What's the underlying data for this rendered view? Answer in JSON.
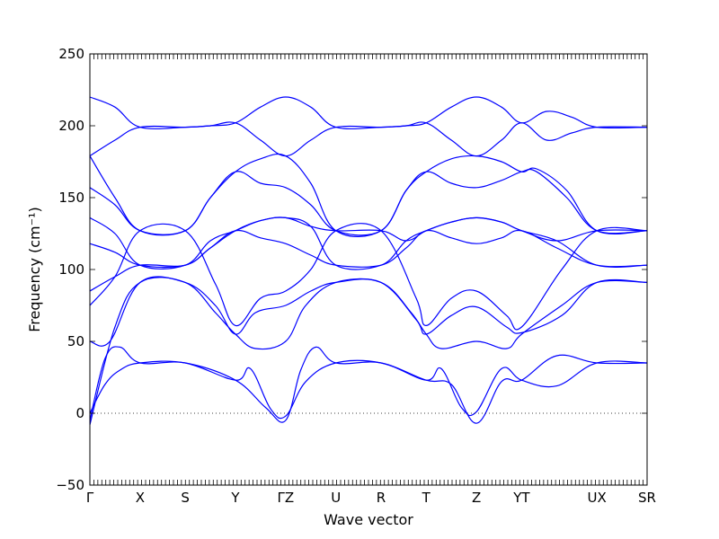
{
  "chart_data": {
    "type": "line",
    "xlabel": "Wave vector",
    "ylabel": "Frequency (cm⁻¹)",
    "ylim": [
      -50,
      250
    ],
    "yticks": [
      -50,
      0,
      50,
      100,
      150,
      200,
      250
    ],
    "grid": false,
    "legend": "none",
    "line_color": "#0000ff",
    "x_points": [
      {
        "label": "Γ",
        "x": 0
      },
      {
        "label": "X",
        "x": 1
      },
      {
        "label": "S",
        "x": 1.9
      },
      {
        "label": "Y",
        "x": 2.9
      },
      {
        "label": "ΓZ",
        "x": 3.9
      },
      {
        "label": "U",
        "x": 4.9
      },
      {
        "label": "R",
        "x": 5.8
      },
      {
        "label": "T",
        "x": 6.7
      },
      {
        "label": "Z",
        "x": 7.7
      },
      {
        "label": "YT",
        "x": 8.6
      },
      {
        "label": "UX",
        "x": 10.1
      },
      {
        "label": "SR",
        "x": 11.1
      }
    ],
    "series": [
      {
        "x": [
          0,
          0.3,
          0.6,
          1,
          1.9,
          2.9,
          3.5,
          3.9,
          4.2,
          4.5,
          4.9,
          5.8,
          6.7,
          7.2,
          7.7,
          8.2,
          8.6,
          9.3,
          10.1,
          11.1
        ],
        "y": [
          -5,
          38,
          46,
          35,
          35,
          23,
          4,
          -5,
          30,
          46,
          35,
          35,
          23,
          20,
          -7,
          22,
          23,
          40,
          35,
          35
        ]
      },
      {
        "x": [
          0,
          0.3,
          0.6,
          1,
          1.9,
          2.9,
          3.2,
          3.6,
          3.9,
          4.3,
          4.9,
          5.8,
          6.7,
          7.0,
          7.4,
          7.7,
          8.2,
          8.6,
          9.3,
          10.1,
          11.1
        ],
        "y": [
          0,
          20,
          30,
          35,
          35,
          23,
          31,
          3,
          -2,
          22,
          35,
          35,
          23,
          31,
          4,
          1,
          31,
          23,
          19,
          35,
          35
        ]
      },
      {
        "x": [
          0,
          0.5,
          1,
          1.9,
          2.5,
          2.9,
          3.3,
          3.9,
          4.3,
          4.9,
          5.8,
          6.4,
          6.7,
          7.0,
          7.7,
          8.3,
          8.6,
          9.4,
          10.1,
          11.1
        ],
        "y": [
          -8,
          60,
          91,
          91,
          70,
          55,
          45,
          50,
          75,
          91,
          91,
          70,
          55,
          45,
          50,
          45,
          55,
          75,
          91,
          91
        ]
      },
      {
        "x": [
          0,
          0.4,
          1,
          1.9,
          2.5,
          2.9,
          3.3,
          3.9,
          4.4,
          4.9,
          5.8,
          6.5,
          6.7,
          7.2,
          7.7,
          8.3,
          8.6,
          9.4,
          10.1,
          11.1
        ],
        "y": [
          50,
          50,
          91,
          91,
          75,
          55,
          70,
          75,
          85,
          91,
          91,
          65,
          55,
          68,
          74,
          60,
          56,
          68,
          91,
          91
        ]
      },
      {
        "x": [
          0,
          0.5,
          1,
          1.9,
          2.5,
          2.9,
          3.4,
          3.9,
          4.4,
          4.9,
          5.8,
          6.5,
          6.7,
          7.2,
          7.7,
          8.3,
          8.6,
          9.4,
          10.1,
          11.1
        ],
        "y": [
          75,
          95,
          127,
          127,
          90,
          61,
          80,
          85,
          100,
          127,
          127,
          80,
          61,
          80,
          85,
          68,
          60,
          100,
          127,
          127
        ]
      },
      {
        "x": [
          0,
          0.5,
          1,
          1.9,
          2.4,
          2.9,
          3.4,
          3.9,
          4.4,
          4.9,
          5.8,
          6.3,
          6.7,
          7.2,
          7.7,
          8.2,
          8.6,
          9.3,
          10.1,
          11.1
        ],
        "y": [
          85,
          95,
          103,
          103,
          115,
          127,
          122,
          118,
          110,
          103,
          103,
          115,
          127,
          122,
          118,
          122,
          127,
          115,
          103,
          103
        ]
      },
      {
        "x": [
          0,
          0.5,
          1,
          1.9,
          2.4,
          2.9,
          3.4,
          3.9,
          4.4,
          4.9,
          5.8,
          6.3,
          6.7,
          7.2,
          7.7,
          8.2,
          8.6,
          9.3,
          10.1,
          11.1
        ],
        "y": [
          118,
          112,
          103,
          103,
          115,
          127,
          134,
          136,
          130,
          127,
          127,
          120,
          127,
          133,
          136,
          133,
          127,
          120,
          127,
          127
        ]
      },
      {
        "x": [
          0,
          0.5,
          1,
          1.9,
          2.4,
          2.9,
          3.4,
          3.9,
          4.4,
          4.9,
          5.8,
          6.3,
          6.7,
          7.2,
          7.7,
          8.2,
          8.6,
          9.3,
          10.1,
          11.1
        ],
        "y": [
          136,
          125,
          103,
          103,
          120,
          127,
          134,
          136,
          130,
          103,
          103,
          120,
          127,
          133,
          136,
          133,
          127,
          120,
          103,
          103
        ]
      },
      {
        "x": [
          0,
          0.5,
          1,
          1.9,
          2.4,
          2.9,
          3.4,
          3.9,
          4.4,
          4.9,
          5.8,
          6.3,
          6.7,
          7.2,
          7.7,
          8.2,
          8.6,
          8.9,
          9.5,
          10.1,
          11.1
        ],
        "y": [
          157,
          145,
          127,
          127,
          150,
          168,
          160,
          157,
          145,
          127,
          127,
          155,
          168,
          160,
          157,
          162,
          168,
          168,
          150,
          127,
          127
        ]
      },
      {
        "x": [
          0,
          0.5,
          1,
          1.9,
          2.4,
          2.9,
          3.4,
          3.9,
          4.4,
          4.9,
          5.8,
          6.3,
          6.7,
          7.2,
          7.7,
          8.2,
          8.6,
          8.9,
          9.5,
          10.1,
          11.1
        ],
        "y": [
          179,
          150,
          127,
          127,
          150,
          168,
          177,
          179,
          160,
          127,
          127,
          155,
          168,
          177,
          179,
          175,
          168,
          170,
          155,
          127,
          127
        ]
      },
      {
        "x": [
          0,
          0.5,
          1,
          1.9,
          2.4,
          2.9,
          3.4,
          3.9,
          4.4,
          4.9,
          5.8,
          6.3,
          6.7,
          7.2,
          7.7,
          8.2,
          8.6,
          9.1,
          9.6,
          10.1,
          11.1
        ],
        "y": [
          179,
          190,
          199,
          199,
          200,
          202,
          190,
          179,
          190,
          199,
          199,
          200,
          202,
          190,
          179,
          190,
          202,
          190,
          195,
          199,
          199
        ]
      },
      {
        "x": [
          0,
          0.5,
          1,
          1.9,
          2.4,
          2.9,
          3.4,
          3.9,
          4.4,
          4.9,
          5.8,
          6.3,
          6.7,
          7.2,
          7.7,
          8.2,
          8.6,
          9.1,
          9.6,
          10.1,
          11.1
        ],
        "y": [
          220,
          213,
          199,
          199,
          200,
          202,
          213,
          220,
          213,
          199,
          199,
          200,
          202,
          213,
          220,
          213,
          202,
          210,
          206,
          199,
          199
        ]
      }
    ]
  }
}
